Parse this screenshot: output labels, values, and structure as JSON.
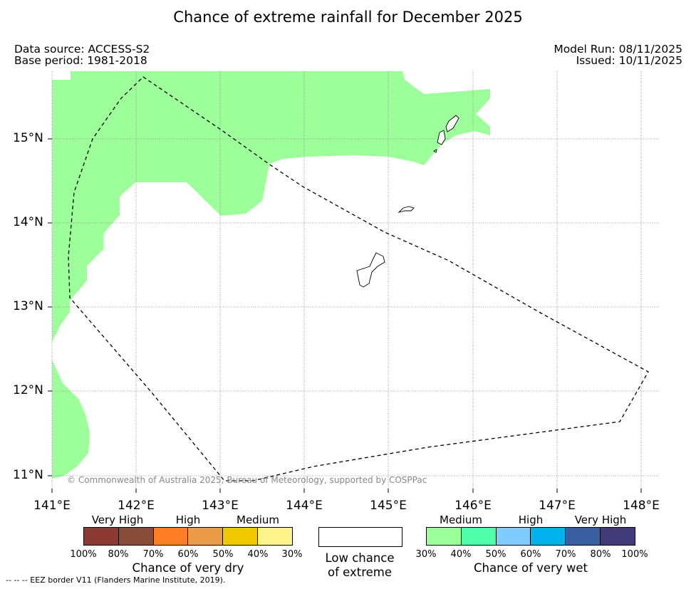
{
  "title": "Chance of extreme rainfall for December 2025",
  "meta": {
    "data_source": "Data source: ACCESS-S2",
    "base_period": "Base period: 1981-2018",
    "model_run": "Model Run: 08/11/2025",
    "issued": "Issued: 10/11/2025"
  },
  "map": {
    "lat_labels": [
      "15°N",
      "14°N",
      "13°N",
      "12°N",
      "11°N"
    ],
    "lon_labels": [
      "141°E",
      "142°E",
      "143°E",
      "144°E",
      "145°E",
      "146°E",
      "147°E",
      "148°E"
    ],
    "copyright": "© Commonwealth of Australia 2025, Bureau of Meteorology, supported by COSPPac",
    "colors": {
      "medium_wet": "#9cff99",
      "coast": "#000000",
      "grid": "#888888"
    }
  },
  "legend": {
    "dry": {
      "title": "Chance of very dry",
      "top_labels": [
        "Very High",
        "High",
        "Medium"
      ],
      "ticks": [
        "100%",
        "80%",
        "70%",
        "60%",
        "50%",
        "40%",
        "30%"
      ],
      "colors": [
        "#8b3a34",
        "#8a4c3a",
        "#ff7f27",
        "#ec9b48",
        "#f0c800",
        "#fff48a"
      ]
    },
    "low": {
      "line1": "Low chance",
      "line2": "of extreme"
    },
    "wet": {
      "title": "Chance of very wet",
      "top_labels": [
        "Medium",
        "High",
        "Very High"
      ],
      "ticks": [
        "30%",
        "40%",
        "50%",
        "60%",
        "70%",
        "80%",
        "100%"
      ],
      "colors": [
        "#9cff99",
        "#50ffaa",
        "#80cbff",
        "#00b1ed",
        "#3a5fa0",
        "#413b7a"
      ]
    }
  },
  "eez_note": "--  --  -- EEZ border V11 (Flanders Marine Institute, 2019)."
}
